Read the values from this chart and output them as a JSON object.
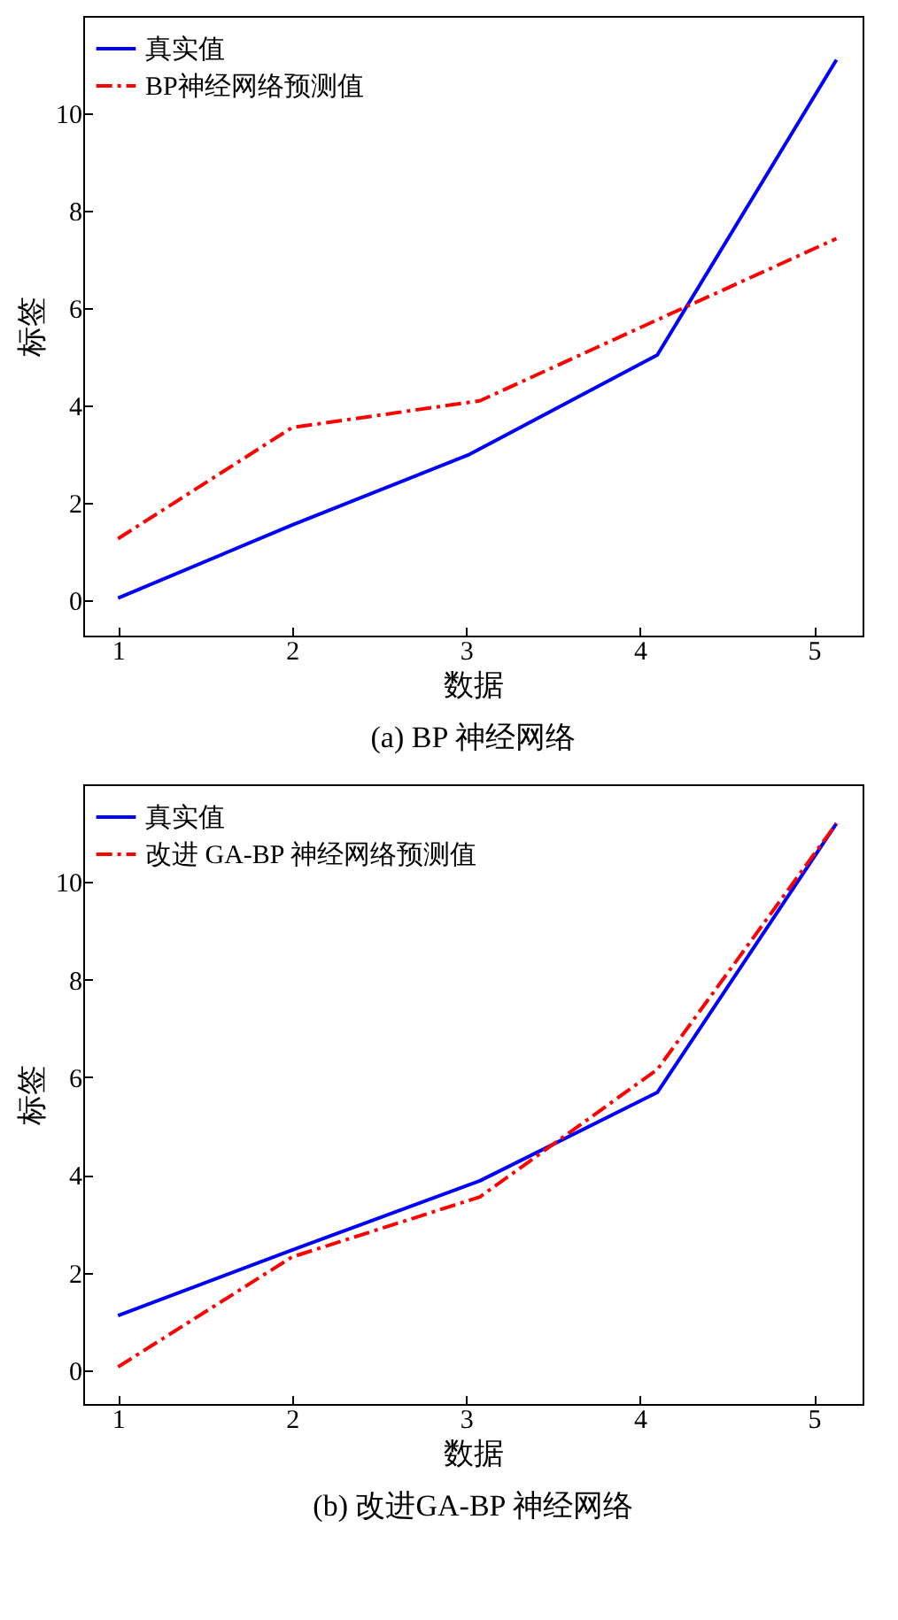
{
  "chart_data": [
    {
      "type": "line",
      "title": "(a) BP 神经网络",
      "xlabel": "数据",
      "ylabel": "标签",
      "xlim": [
        0.8,
        5.28
      ],
      "ylim": [
        -0.72,
        12
      ],
      "xticks": [
        1,
        2,
        3,
        4,
        5
      ],
      "yticks": [
        0,
        2,
        4,
        6,
        8,
        10
      ],
      "grid": false,
      "legend": "top left",
      "series": [
        {
          "name": "真实值",
          "color": "#0000ff",
          "line_style": "solid",
          "x": [
            1,
            2,
            3.02,
            4.1,
            5.13
          ],
          "values": [
            0.05,
            1.55,
            3.0,
            5.04,
            11.1
          ]
        },
        {
          "name": "BP神经网络预测值",
          "color": "#ff0000",
          "line_style": "dashdot",
          "x": [
            1,
            2,
            3.08,
            4,
            5.13
          ],
          "values": [
            1.27,
            3.55,
            4.1,
            5.6,
            7.43
          ]
        }
      ]
    },
    {
      "type": "line",
      "title": "(b) 改进GA-BP 神经网络",
      "xlabel": "数据",
      "ylabel": "标签",
      "xlim": [
        0.8,
        5.28
      ],
      "ylim": [
        -0.69,
        12
      ],
      "xticks": [
        1,
        2,
        3,
        4,
        5
      ],
      "yticks": [
        0,
        2,
        4,
        6,
        8,
        10
      ],
      "grid": false,
      "legend": "top left",
      "series": [
        {
          "name": "真实值",
          "color": "#0000ff",
          "line_style": "solid",
          "x": [
            1,
            2,
            3.08,
            4.1,
            5.13
          ],
          "values": [
            1.12,
            2.46,
            3.88,
            5.69,
            11.2
          ]
        },
        {
          "name": "改进 GA-BP 神经网络预测值",
          "color": "#ff0000",
          "line_style": "dashdot",
          "x": [
            1,
            2,
            3.08,
            4.1,
            5.13
          ],
          "values": [
            0.07,
            2.32,
            3.55,
            6.16,
            11.2
          ]
        }
      ]
    }
  ]
}
